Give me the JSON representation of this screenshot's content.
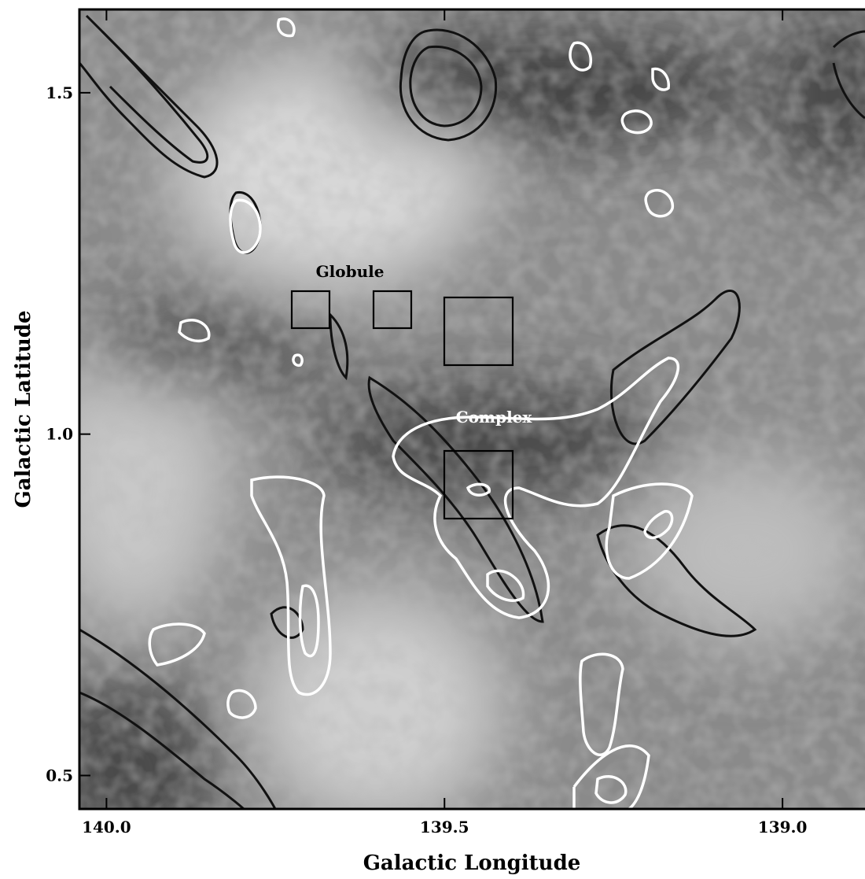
{
  "chart_data": {
    "type": "image",
    "xlabel": "Galactic Longitude",
    "ylabel": "Galactic Latitude",
    "xlim": [
      140.04,
      138.878
    ],
    "ylim": [
      0.451,
      1.622
    ],
    "xticks": [
      {
        "value": 140,
        "label": "140.0"
      },
      139.5,
      {
        "value": 139,
        "label": "139.0"
      }
    ],
    "yticks": [
      {
        "value": 0.5,
        "label": "0.5"
      },
      {
        "value": 1,
        "label": "1.0"
      },
      1.5
    ],
    "annotations": [
      "Globule",
      "Complex"
    ]
  }
}
